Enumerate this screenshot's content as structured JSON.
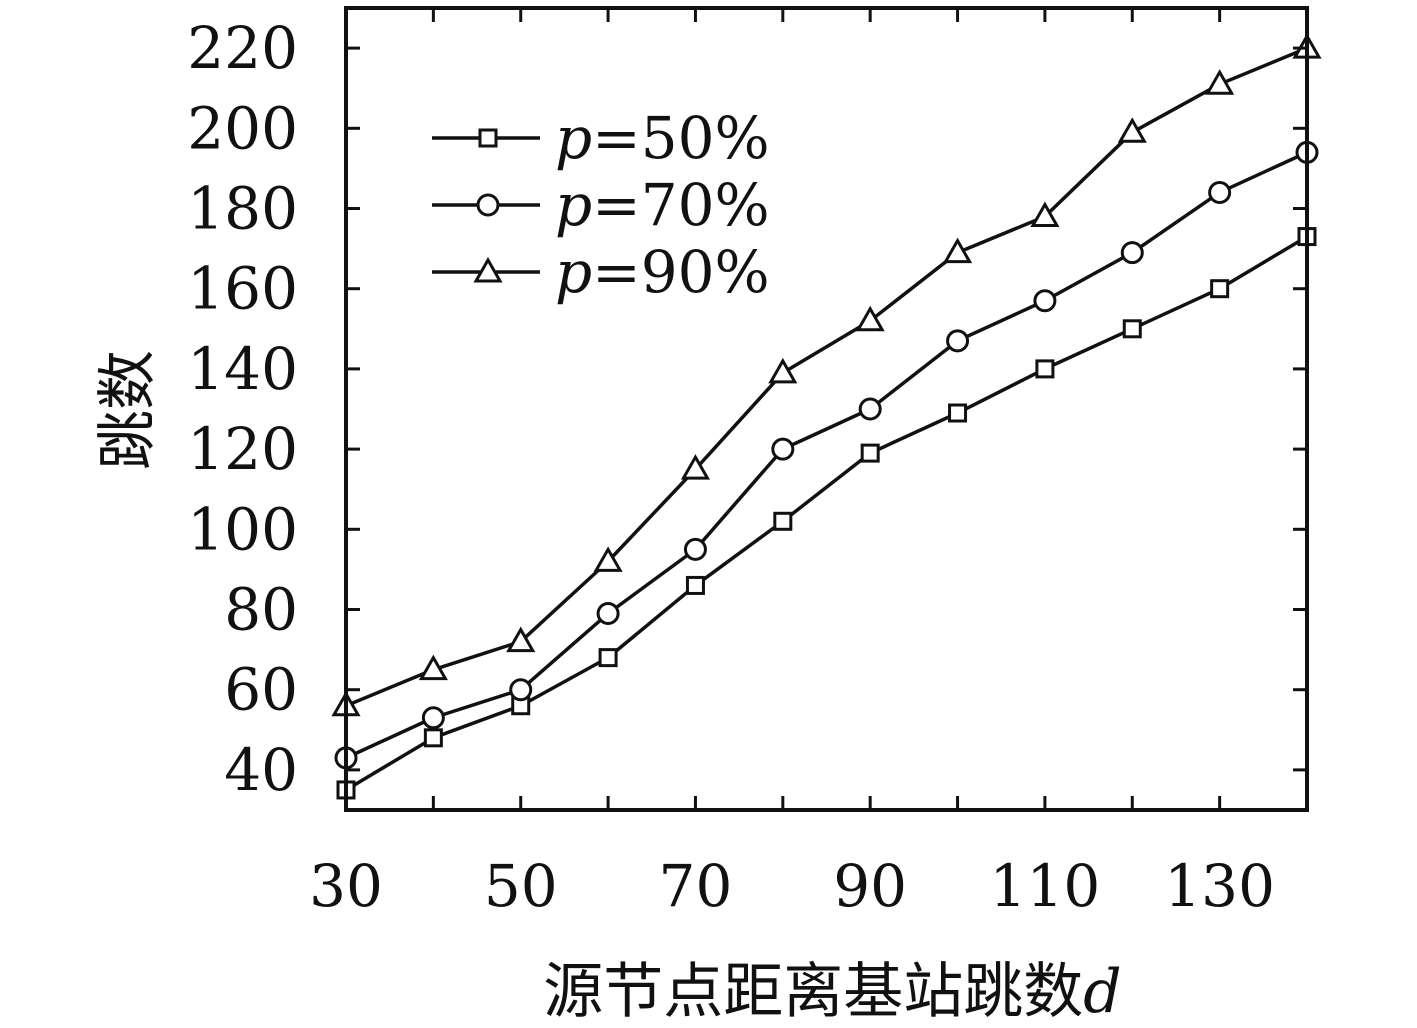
{
  "chart_data": {
    "type": "line",
    "xlabel": "源节点距离基站跳数",
    "xlabel_var": "d",
    "ylabel": "跳数",
    "x": [
      30,
      40,
      50,
      60,
      70,
      80,
      90,
      100,
      110,
      120,
      130,
      140
    ],
    "x_ticks": [
      30,
      50,
      70,
      90,
      110,
      130
    ],
    "y_ticks": [
      40,
      60,
      80,
      100,
      120,
      140,
      160,
      180,
      200,
      220
    ],
    "xlim": [
      30,
      140
    ],
    "ylim": [
      30,
      230
    ],
    "grid": false,
    "legend_position": "top-left",
    "series": [
      {
        "name": "p=50%",
        "legend_var": "p",
        "legend_rest": "=50%",
        "marker": "square",
        "values": [
          35,
          48,
          56,
          68,
          86,
          102,
          119,
          129,
          140,
          150,
          160,
          173
        ]
      },
      {
        "name": "p=70%",
        "legend_var": "p",
        "legend_rest": "=70%",
        "marker": "circle",
        "values": [
          43,
          53,
          60,
          79,
          95,
          120,
          130,
          147,
          157,
          169,
          184,
          194
        ]
      },
      {
        "name": "p=90%",
        "legend_var": "p",
        "legend_rest": "=90%",
        "marker": "triangle",
        "values": [
          56,
          65,
          72,
          92,
          115,
          139,
          152,
          169,
          178,
          199,
          211,
          220
        ]
      }
    ]
  }
}
